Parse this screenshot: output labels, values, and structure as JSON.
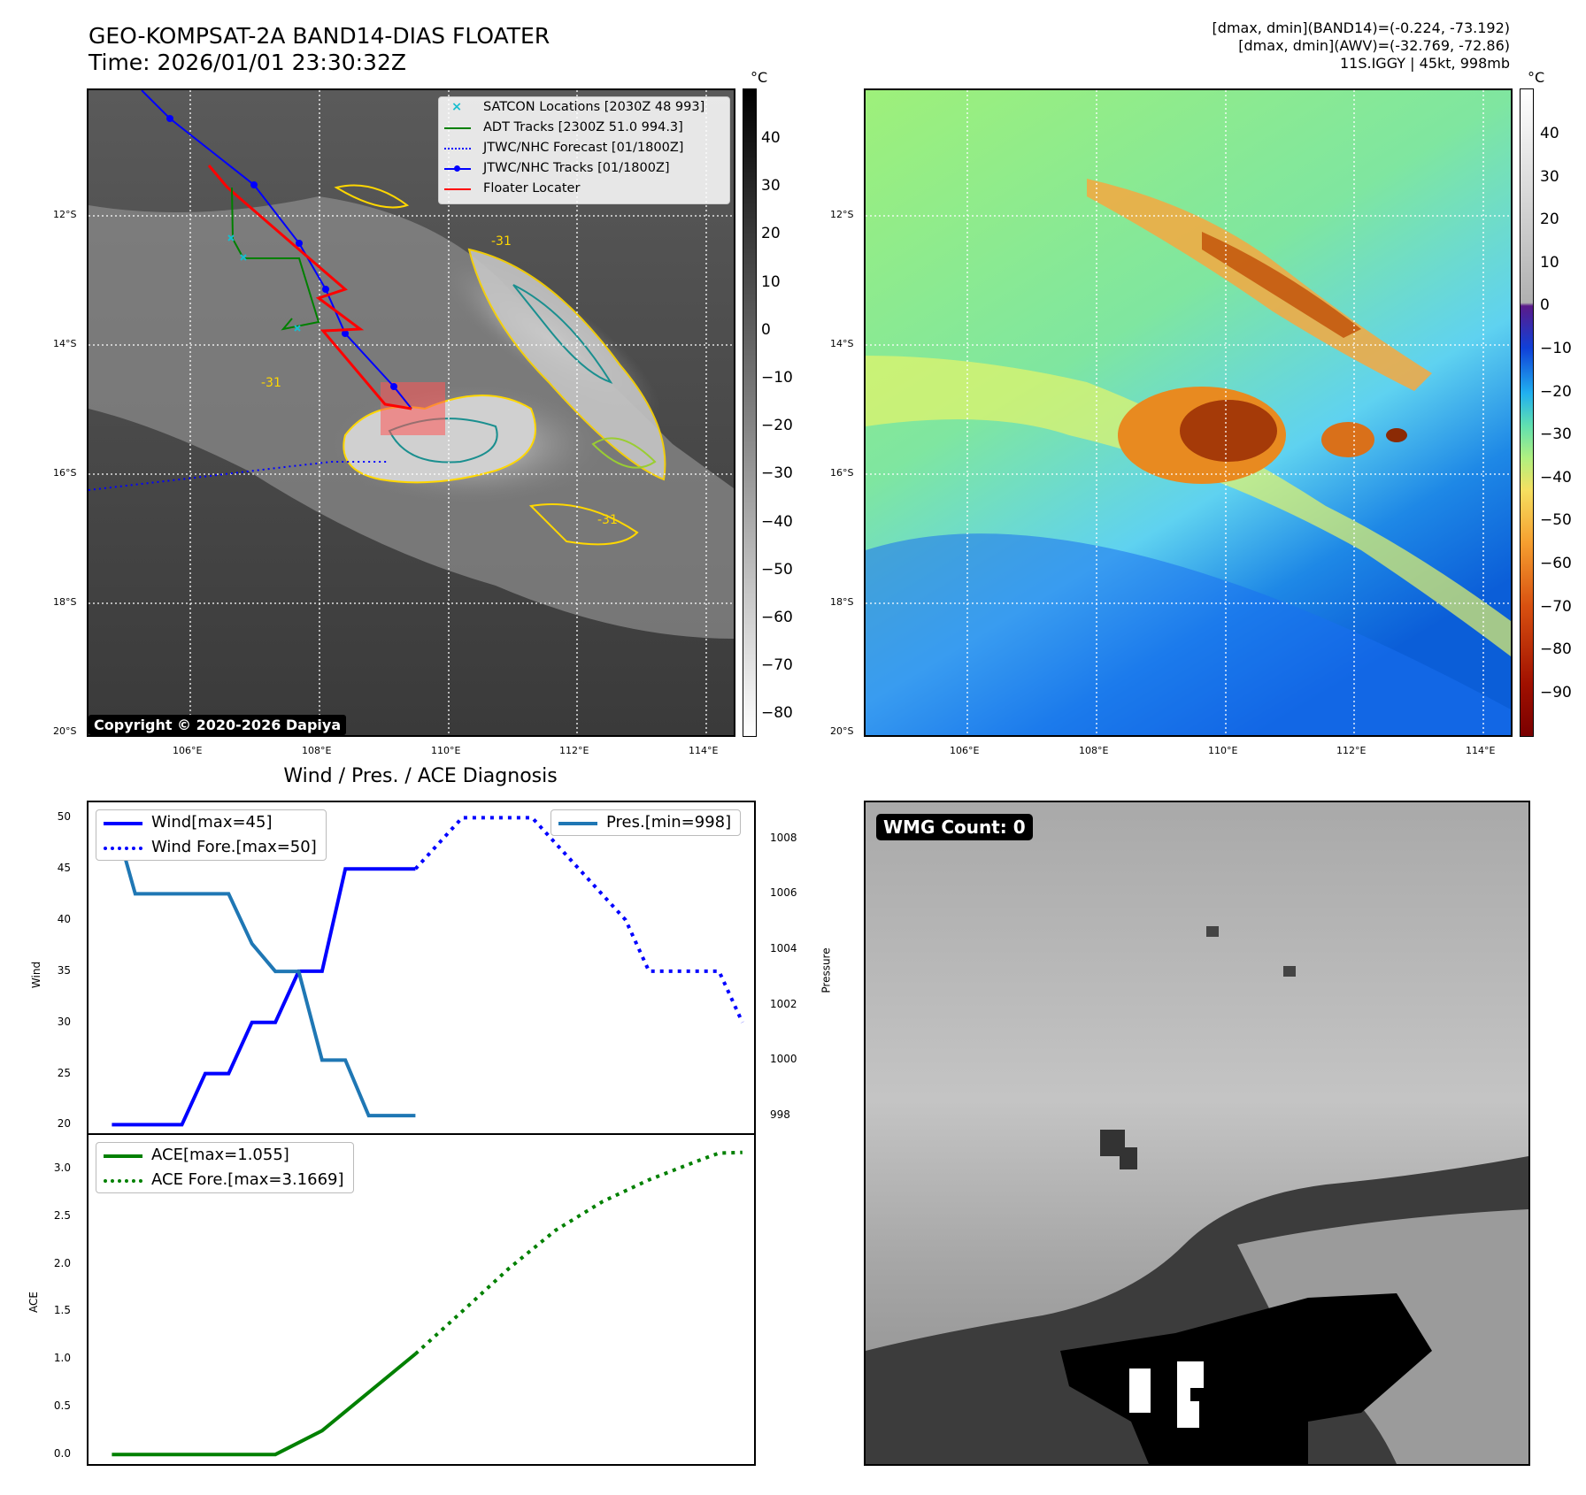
{
  "header": {
    "title": "GEO-KOMPSAT-2A BAND14-DIAS FLOATER",
    "time": "Time: 2026/01/01 23:30:32Z",
    "info_line1": "[dmax, dmin](BAND14)=(-0.224, -73.192)",
    "info_line2": "[dmax, dmin](AWV)=(-32.769, -72.86)",
    "info_line3": "11S.IGGY | 45kt, 998mb"
  },
  "map": {
    "lat_labels": [
      "12°S",
      "14°S",
      "16°S",
      "18°S",
      "20°S"
    ],
    "lon_labels": [
      "106°E",
      "108°E",
      "110°E",
      "112°E",
      "114°E"
    ],
    "contour_label": "-31",
    "copyright": "Copyright © 2020-2026 Dapiya",
    "colorbar_unit": "°C",
    "gray_ticks": [
      "40",
      "30",
      "20",
      "10",
      "0",
      "−10",
      "−20",
      "−30",
      "−40",
      "−50",
      "−60",
      "−70",
      "−80"
    ],
    "color_ticks": [
      "40",
      "30",
      "20",
      "10",
      "0",
      "−10",
      "−20",
      "−30",
      "−40",
      "−50",
      "−60",
      "−70",
      "−80",
      "−90"
    ],
    "legend": [
      {
        "label": "SATCON Locations [2030Z 48 993]",
        "color": "#17becf",
        "marker": "x"
      },
      {
        "label": "ADT Tracks [2300Z 51.0 994.3]",
        "color": "#008000",
        "marker": "line"
      },
      {
        "label": "JTWC/NHC Forecast [01/1800Z]",
        "color": "#0000ff",
        "marker": "dotted"
      },
      {
        "label": "JTWC/NHC Tracks [01/1800Z]",
        "color": "#0000ff",
        "marker": "line-dot"
      },
      {
        "label": "Floater Locater",
        "color": "#ff0000",
        "marker": "line"
      }
    ]
  },
  "wmg": {
    "label": "WMG Count: 0"
  },
  "chart_data": [
    {
      "type": "line",
      "title": "Wind / Pres. / ACE Diagnosis",
      "ylabel": "Wind",
      "y2label": "Pressure",
      "ylim": [
        19,
        51.5
      ],
      "y2lim": [
        997.3,
        1009.3
      ],
      "y_ticks": [
        "20",
        "25",
        "30",
        "35",
        "40",
        "45",
        "50"
      ],
      "y2_ticks": [
        "998",
        "1000",
        "1002",
        "1004",
        "1006",
        "1008"
      ],
      "x_index_range": [
        -1,
        27.5
      ],
      "series": [
        {
          "name": "Wind[max=45]",
          "color": "#0000ff",
          "style": "solid",
          "axis": "left",
          "x": [
            0,
            1,
            2,
            3,
            4,
            5,
            6,
            7,
            8,
            9,
            10,
            11,
            12,
            13
          ],
          "values": [
            20,
            20,
            20,
            20,
            25,
            25,
            30,
            30,
            35,
            35,
            45,
            45,
            45,
            45
          ]
        },
        {
          "name": "Wind Fore.[max=50]",
          "color": "#0000ff",
          "style": "dotted",
          "axis": "left",
          "x": [
            13,
            14,
            15,
            16,
            17,
            18,
            19,
            20,
            21,
            22,
            23,
            24,
            25,
            26,
            27
          ],
          "values": [
            45,
            47.5,
            50,
            50,
            50,
            50,
            47.5,
            45,
            42.5,
            40,
            35,
            35,
            35,
            35,
            30
          ]
        },
        {
          "name": "Pres.[min=998]",
          "color": "#1f77b4",
          "style": "solid",
          "axis": "right",
          "x": [
            0,
            1,
            2,
            3,
            4,
            5,
            6,
            7,
            8,
            9,
            10,
            11,
            12,
            13
          ],
          "values": [
            1009,
            1006,
            1006,
            1006,
            1006,
            1006,
            1004.2,
            1003.2,
            1003.2,
            1000,
            1000,
            998,
            998,
            998
          ]
        }
      ]
    },
    {
      "type": "line",
      "ylabel": "ACE",
      "ylim": [
        -0.1,
        3.35
      ],
      "y_ticks": [
        "0.0",
        "0.5",
        "1.0",
        "1.5",
        "2.0",
        "2.5",
        "3.0"
      ],
      "x_index_range": [
        -1,
        27.5
      ],
      "series": [
        {
          "name": "ACE[max=1.055]",
          "color": "#008000",
          "style": "solid",
          "x": [
            0,
            7,
            9,
            13
          ],
          "values": [
            0,
            0,
            0.25,
            1.055
          ]
        },
        {
          "name": "ACE Fore.[max=3.1669]",
          "color": "#008000",
          "style": "dotted",
          "x": [
            13,
            15,
            17,
            19,
            21,
            23,
            25,
            26,
            27
          ],
          "values": [
            1.055,
            1.5,
            1.95,
            2.35,
            2.65,
            2.88,
            3.07,
            3.16,
            3.1669
          ]
        }
      ]
    }
  ]
}
